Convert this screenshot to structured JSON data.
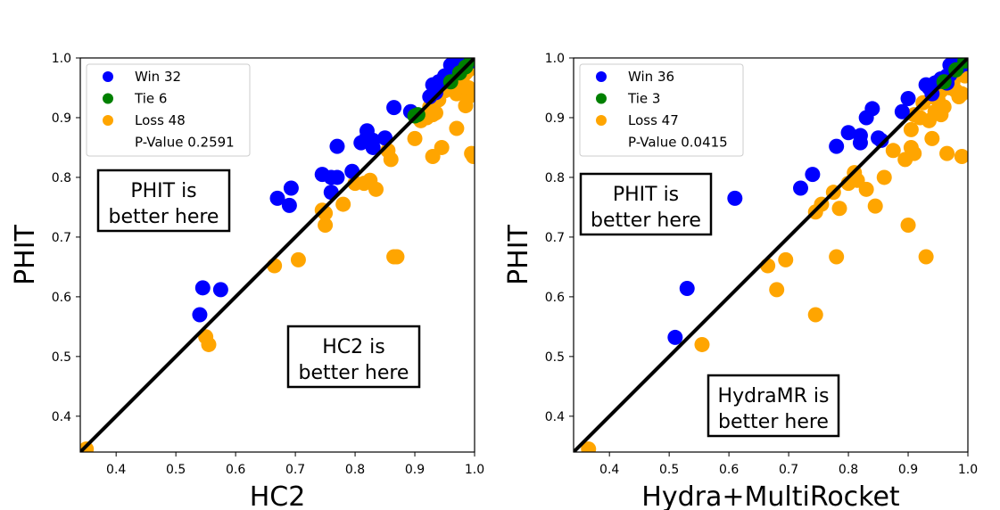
{
  "colors": {
    "win": "#0000ff",
    "tie": "#008000",
    "loss": "#ffa500",
    "diagonal": "#000000"
  },
  "chart_data": [
    {
      "type": "scatter",
      "xlabel": "HC2",
      "ylabel": "PHIT",
      "xlim": [
        0.34,
        1.0
      ],
      "ylim": [
        0.34,
        1.0
      ],
      "xticks": [
        "0.4",
        "0.5",
        "0.6",
        "0.7",
        "0.8",
        "0.9",
        "1.0"
      ],
      "yticks": [
        "0.4",
        "0.5",
        "0.6",
        "0.7",
        "0.8",
        "0.9",
        "1.0"
      ],
      "legend_placement": "upper-left",
      "legend": {
        "win": "Win 32",
        "tie": "Tie 6",
        "loss": "Loss 48",
        "pvalue": "P-Value 0.2591"
      },
      "annotations": {
        "upper": [
          "PHIT is",
          "better here"
        ],
        "lower": [
          "HC2 is",
          "better here"
        ]
      },
      "series": [
        {
          "name": "Win 32",
          "color_key": "win",
          "points": [
            [
              0.54,
              0.57
            ],
            [
              0.545,
              0.615
            ],
            [
              0.575,
              0.612
            ],
            [
              0.67,
              0.765
            ],
            [
              0.69,
              0.753
            ],
            [
              0.693,
              0.782
            ],
            [
              0.745,
              0.805
            ],
            [
              0.76,
              0.775
            ],
            [
              0.76,
              0.8
            ],
            [
              0.77,
              0.852
            ],
            [
              0.77,
              0.8
            ],
            [
              0.795,
              0.81
            ],
            [
              0.81,
              0.858
            ],
            [
              0.82,
              0.868
            ],
            [
              0.82,
              0.878
            ],
            [
              0.83,
              0.85
            ],
            [
              0.83,
              0.862
            ],
            [
              0.85,
              0.866
            ],
            [
              0.865,
              0.917
            ],
            [
              0.893,
              0.91
            ],
            [
              0.925,
              0.935
            ],
            [
              0.93,
              0.955
            ],
            [
              0.935,
              0.942
            ],
            [
              0.94,
              0.96
            ],
            [
              0.945,
              0.958
            ],
            [
              0.95,
              0.97
            ],
            [
              0.96,
              0.988
            ],
            [
              0.965,
              0.982
            ],
            [
              0.97,
              0.975
            ],
            [
              0.975,
              0.99
            ],
            [
              0.985,
              0.998
            ],
            [
              0.995,
              0.995
            ]
          ]
        },
        {
          "name": "Tie 6",
          "color_key": "tie",
          "points": [
            [
              0.9,
              0.903
            ],
            [
              0.905,
              0.905
            ],
            [
              0.96,
              0.96
            ],
            [
              0.975,
              0.975
            ],
            [
              0.985,
              0.985
            ],
            [
              0.995,
              0.998
            ]
          ]
        },
        {
          "name": "Loss 48",
          "color_key": "loss",
          "points": [
            [
              0.35,
              0.345
            ],
            [
              0.55,
              0.533
            ],
            [
              0.555,
              0.52
            ],
            [
              0.665,
              0.652
            ],
            [
              0.705,
              0.662
            ],
            [
              0.745,
              0.745
            ],
            [
              0.75,
              0.72
            ],
            [
              0.75,
              0.74
            ],
            [
              0.78,
              0.755
            ],
            [
              0.8,
              0.79
            ],
            [
              0.815,
              0.79
            ],
            [
              0.825,
              0.795
            ],
            [
              0.835,
              0.78
            ],
            [
              0.855,
              0.845
            ],
            [
              0.86,
              0.83
            ],
            [
              0.865,
              0.667
            ],
            [
              0.87,
              0.667
            ],
            [
              0.9,
              0.865
            ],
            [
              0.91,
              0.895
            ],
            [
              0.92,
              0.9
            ],
            [
              0.925,
              0.918
            ],
            [
              0.93,
              0.905
            ],
            [
              0.93,
              0.835
            ],
            [
              0.935,
              0.908
            ],
            [
              0.945,
              0.85
            ],
            [
              0.95,
              0.945
            ],
            [
              0.955,
              0.96
            ],
            [
              0.96,
              0.965
            ],
            [
              0.965,
              0.97
            ],
            [
              0.97,
              0.882
            ],
            [
              0.97,
              0.94
            ],
            [
              0.975,
              0.955
            ],
            [
              0.975,
              0.96
            ],
            [
              0.98,
              0.945
            ],
            [
              0.98,
              0.968
            ],
            [
              0.985,
              0.92
            ],
            [
              0.985,
              0.975
            ],
            [
              0.99,
              0.935
            ],
            [
              0.99,
              0.98
            ],
            [
              0.995,
              0.99
            ],
            [
              0.995,
              0.84
            ],
            [
              0.998,
              0.835
            ],
            [
              0.94,
              0.93
            ],
            [
              0.955,
              0.95
            ],
            [
              0.965,
              0.975
            ],
            [
              0.985,
              0.99
            ],
            [
              0.99,
              0.95
            ],
            [
              0.998,
              0.998
            ]
          ]
        }
      ]
    },
    {
      "type": "scatter",
      "xlabel": "Hydra+MultiRocket",
      "ylabel": "PHIT",
      "xlim": [
        0.34,
        1.0
      ],
      "ylim": [
        0.34,
        1.0
      ],
      "xticks": [
        "0.4",
        "0.5",
        "0.6",
        "0.7",
        "0.8",
        "0.9",
        "1.0"
      ],
      "yticks": [
        "0.4",
        "0.5",
        "0.6",
        "0.7",
        "0.8",
        "0.9",
        "1.0"
      ],
      "legend_placement": "upper-left",
      "legend": {
        "win": "Win 36",
        "tie": "Tie 3",
        "loss": "Loss 47",
        "pvalue": "P-Value 0.0415"
      },
      "annotations": {
        "upper": [
          "PHIT is",
          "better here"
        ],
        "lower": [
          "HydraMR is",
          "better here"
        ]
      },
      "series": [
        {
          "name": "Win 36",
          "color_key": "win",
          "points": [
            [
              0.51,
              0.532
            ],
            [
              0.53,
              0.614
            ],
            [
              0.61,
              0.765
            ],
            [
              0.72,
              0.782
            ],
            [
              0.74,
              0.805
            ],
            [
              0.78,
              0.852
            ],
            [
              0.8,
              0.875
            ],
            [
              0.82,
              0.858
            ],
            [
              0.82,
              0.87
            ],
            [
              0.83,
              0.9
            ],
            [
              0.84,
              0.915
            ],
            [
              0.85,
              0.866
            ],
            [
              0.855,
              0.862
            ],
            [
              0.89,
              0.91
            ],
            [
              0.9,
              0.932
            ],
            [
              0.93,
              0.955
            ],
            [
              0.935,
              0.95
            ],
            [
              0.94,
              0.94
            ],
            [
              0.945,
              0.958
            ],
            [
              0.95,
              0.96
            ],
            [
              0.955,
              0.965
            ],
            [
              0.96,
              0.965
            ],
            [
              0.965,
              0.97
            ],
            [
              0.97,
              0.988
            ],
            [
              0.975,
              0.98
            ],
            [
              0.98,
              0.99
            ],
            [
              0.985,
              0.985
            ],
            [
              0.99,
              0.995
            ],
            [
              0.995,
              0.998
            ],
            [
              0.965,
              0.958
            ],
            [
              0.97,
              0.972
            ],
            [
              0.975,
              0.985
            ],
            [
              0.98,
              0.995
            ],
            [
              0.985,
              0.992
            ],
            [
              0.99,
              0.99
            ],
            [
              0.995,
              0.99
            ]
          ]
        },
        {
          "name": "Tie 3",
          "color_key": "tie",
          "points": [
            [
              0.96,
              0.96
            ],
            [
              0.98,
              0.98
            ],
            [
              0.995,
              0.995
            ]
          ]
        },
        {
          "name": "Loss 47",
          "color_key": "loss",
          "points": [
            [
              0.365,
              0.345
            ],
            [
              0.555,
              0.52
            ],
            [
              0.665,
              0.652
            ],
            [
              0.68,
              0.612
            ],
            [
              0.695,
              0.662
            ],
            [
              0.745,
              0.57
            ],
            [
              0.745,
              0.742
            ],
            [
              0.755,
              0.755
            ],
            [
              0.775,
              0.775
            ],
            [
              0.78,
              0.667
            ],
            [
              0.785,
              0.748
            ],
            [
              0.8,
              0.79
            ],
            [
              0.81,
              0.808
            ],
            [
              0.815,
              0.795
            ],
            [
              0.83,
              0.78
            ],
            [
              0.845,
              0.752
            ],
            [
              0.86,
              0.8
            ],
            [
              0.875,
              0.845
            ],
            [
              0.895,
              0.83
            ],
            [
              0.9,
              0.72
            ],
            [
              0.905,
              0.85
            ],
            [
              0.91,
              0.84
            ],
            [
              0.905,
              0.88
            ],
            [
              0.92,
              0.9
            ],
            [
              0.93,
              0.667
            ],
            [
              0.935,
              0.895
            ],
            [
              0.94,
              0.865
            ],
            [
              0.945,
              0.91
            ],
            [
              0.95,
              0.93
            ],
            [
              0.955,
              0.905
            ],
            [
              0.96,
              0.918
            ],
            [
              0.965,
              0.84
            ],
            [
              0.97,
              0.95
            ],
            [
              0.975,
              0.96
            ],
            [
              0.98,
              0.975
            ],
            [
              0.98,
              0.945
            ],
            [
              0.985,
              0.935
            ],
            [
              0.99,
              0.94
            ],
            [
              0.99,
              0.835
            ],
            [
              0.995,
              0.97
            ],
            [
              0.925,
              0.925
            ],
            [
              0.94,
              0.935
            ],
            [
              0.955,
              0.945
            ],
            [
              0.97,
              0.97
            ],
            [
              0.985,
              0.98
            ],
            [
              0.995,
              0.99
            ],
            [
              0.91,
              0.905
            ]
          ]
        }
      ]
    }
  ]
}
